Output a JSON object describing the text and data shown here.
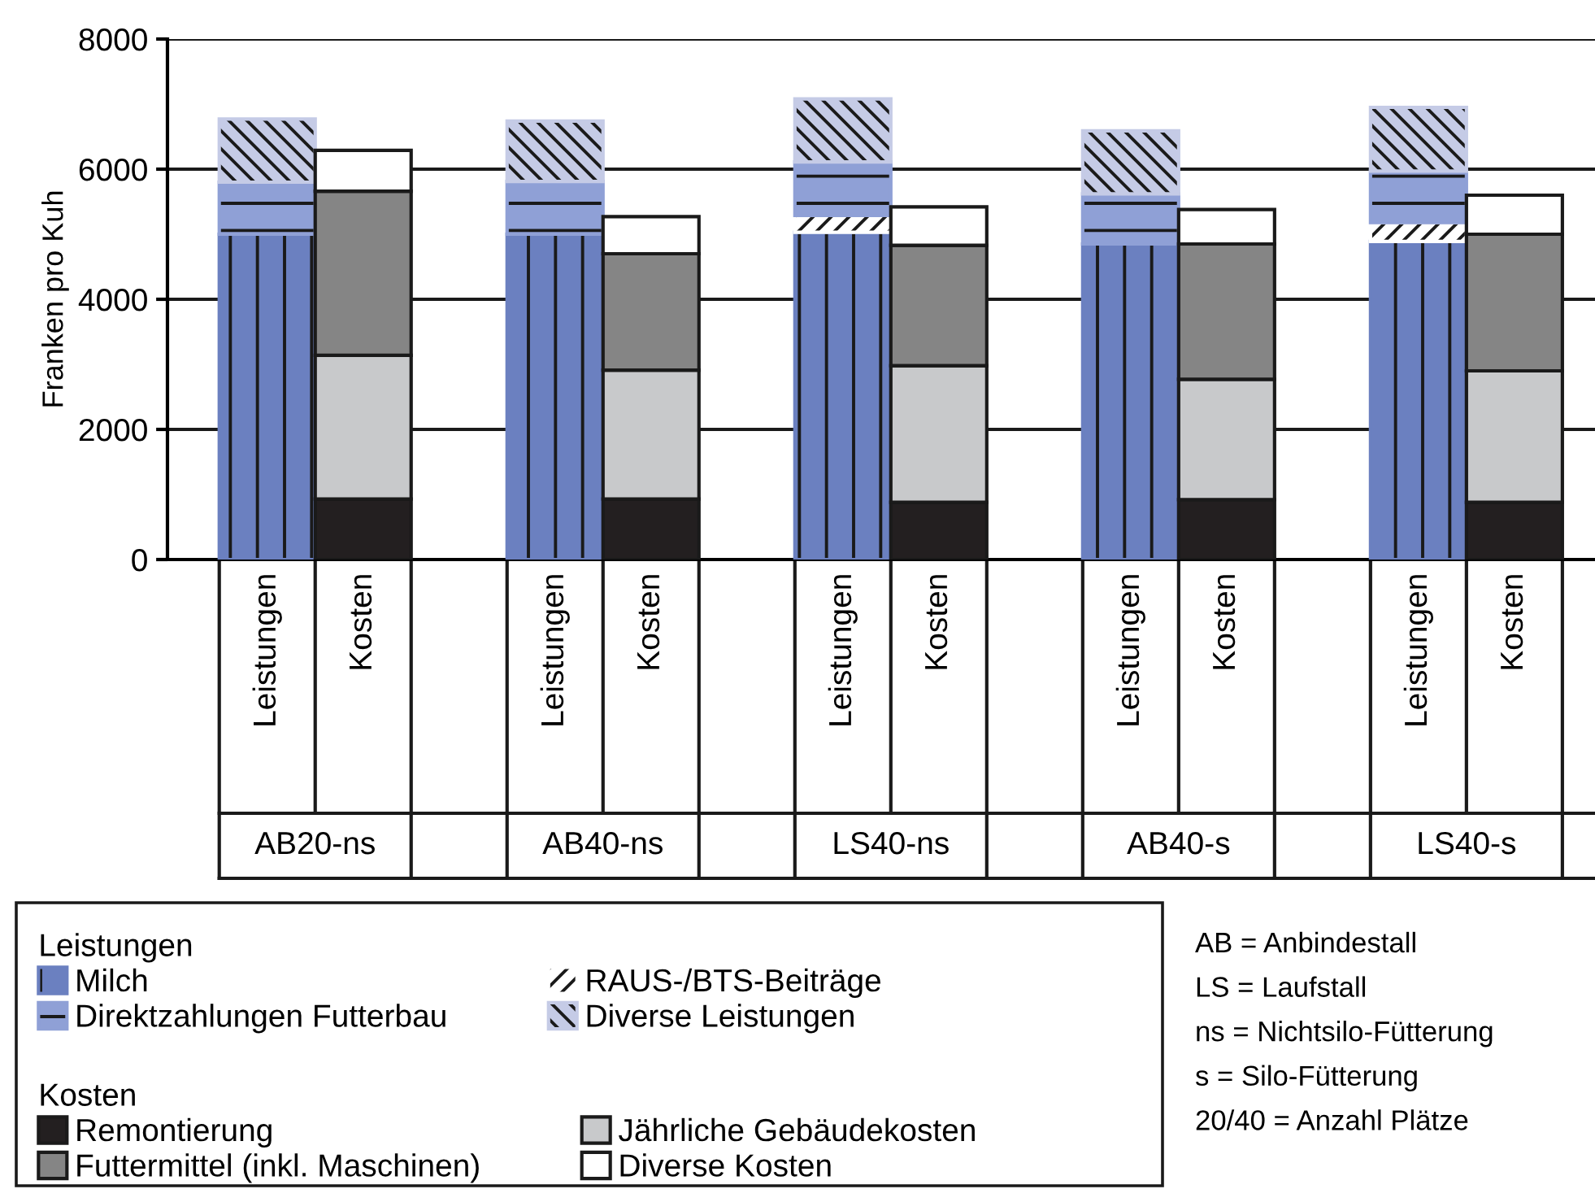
{
  "chart_data": {
    "type": "bar",
    "stacked": true,
    "ylabel": "Franken pro Kuh",
    "categories": [
      "Leistungen",
      "Kosten",
      "Leistungen",
      "Kosten",
      "Leistungen",
      "Kosten",
      "Leistungen",
      "Kosten",
      "Leistungen",
      "Kosten"
    ],
    "series": [
      {
        "name": "Milch",
        "color": "#6b80c0",
        "values": [
          5000,
          null,
          5000,
          null,
          5030,
          null,
          4850,
          null,
          4890,
          null
        ]
      },
      {
        "name": "RAUS-/BTS-Beiträge",
        "color": "#ffffff",
        "values": [
          null,
          null,
          null,
          null,
          260,
          null,
          null,
          null,
          290,
          null
        ]
      },
      {
        "name": "Direktzahlungen Futterbau",
        "color": "#8fa0d6",
        "values": [
          800,
          null,
          810,
          null,
          820,
          null,
          770,
          null,
          790,
          null
        ]
      },
      {
        "name": "Diverse Leistungen",
        "color": "#c5cbe6",
        "values": [
          970,
          null,
          930,
          null,
          970,
          null,
          970,
          null,
          980,
          null
        ]
      },
      {
        "name": "Remontierung",
        "color": "#231f20",
        "values": [
          null,
          930,
          null,
          930,
          null,
          880,
          null,
          920,
          null,
          880
        ]
      },
      {
        "name": "Jährliche Gebäudekosten",
        "color": "#c8c9cb",
        "values": [
          null,
          2210,
          null,
          1980,
          null,
          2100,
          null,
          1850,
          null,
          2020
        ]
      },
      {
        "name": "Futtermittel (inkl. Maschinen)",
        "color": "#858585",
        "values": [
          null,
          2520,
          null,
          1790,
          null,
          1850,
          null,
          2080,
          null,
          2100
        ]
      },
      {
        "name": "Diverse Kosten",
        "color": "#ffffff",
        "values": [
          null,
          630,
          null,
          570,
          null,
          590,
          null,
          530,
          null,
          600
        ]
      }
    ],
    "ylim": [
      0,
      8000
    ],
    "yticks": [
      0,
      2000,
      4000,
      6000,
      8000
    ],
    "grid": "y",
    "legend": "bottom",
    "annotations": [
      "AB20-ns",
      "AB40-ns",
      "LS40-ns",
      "AB40-s",
      "LS40-s",
      "Leistungen",
      "Kosten",
      "AB = Anbindestall",
      "LS = Laufstall",
      "ns = Nichtsilo-Fütterung",
      "s = Silo-Fütterung",
      "20/40 = Anzahl Plätze"
    ]
  }
}
